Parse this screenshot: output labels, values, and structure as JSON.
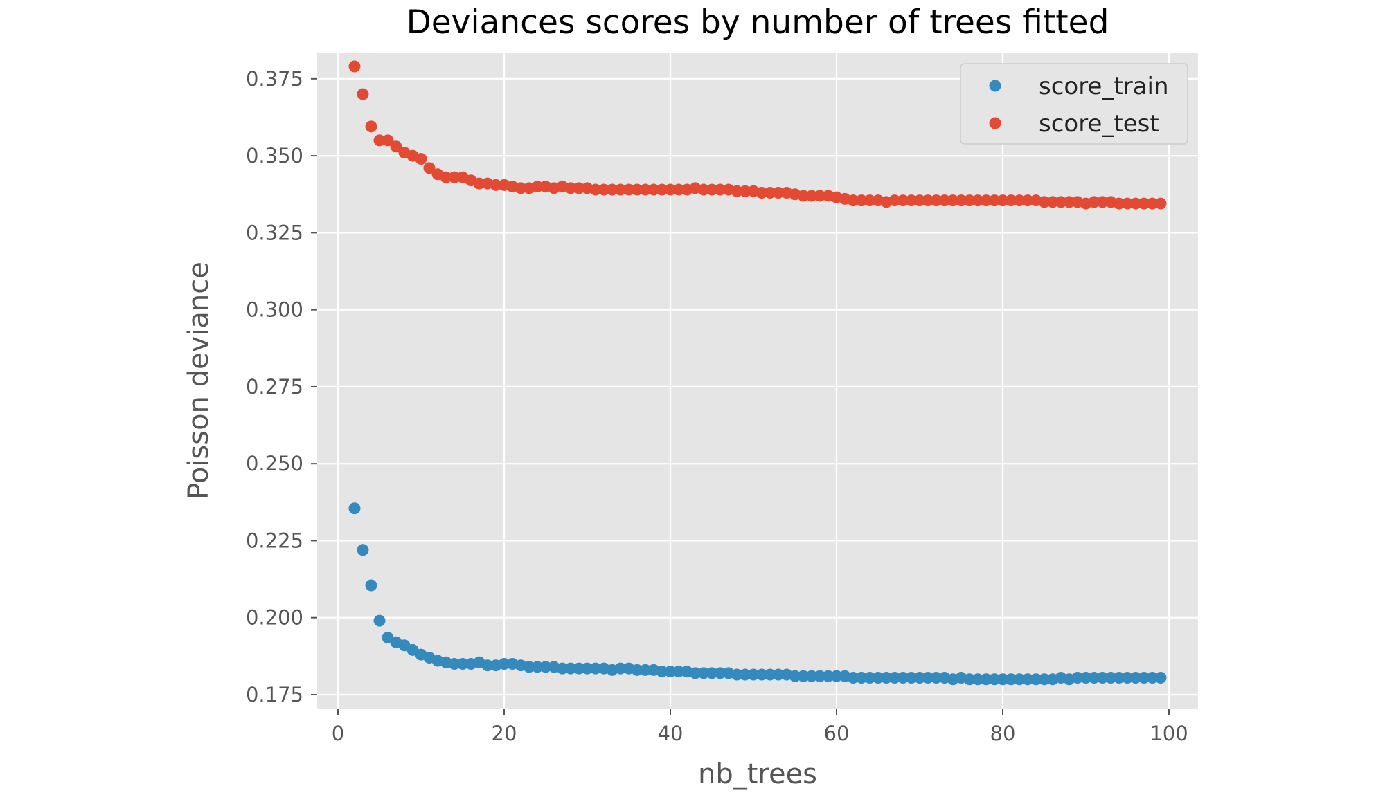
{
  "chart_data": {
    "type": "scatter",
    "title": "Deviances scores by number of trees fitted",
    "xlabel": "nb_trees",
    "ylabel": "Poisson deviance",
    "xlim": [
      -2.5,
      103.5
    ],
    "ylim": [
      0.1705,
      0.3835
    ],
    "xticks": [
      0,
      20,
      40,
      60,
      80,
      100
    ],
    "yticks": [
      0.175,
      0.2,
      0.225,
      0.25,
      0.275,
      0.3,
      0.325,
      0.35,
      0.375
    ],
    "xtick_labels": [
      "0",
      "20",
      "40",
      "60",
      "80",
      "100"
    ],
    "ytick_labels": [
      "0.175",
      "0.200",
      "0.225",
      "0.250",
      "0.275",
      "0.300",
      "0.325",
      "0.350",
      "0.375"
    ],
    "grid": true,
    "legend_position": "top-right",
    "background_color": "#e5e5e5",
    "series": [
      {
        "name": "score_train",
        "color": "#348abd",
        "x": [
          2,
          3,
          4,
          5,
          6,
          7,
          8,
          9,
          10,
          11,
          12,
          13,
          14,
          15,
          16,
          17,
          18,
          19,
          20,
          21,
          22,
          23,
          24,
          25,
          26,
          27,
          28,
          29,
          30,
          31,
          32,
          33,
          34,
          35,
          36,
          37,
          38,
          39,
          40,
          41,
          42,
          43,
          44,
          45,
          46,
          47,
          48,
          49,
          50,
          51,
          52,
          53,
          54,
          55,
          56,
          57,
          58,
          59,
          60,
          61,
          62,
          63,
          64,
          65,
          66,
          67,
          68,
          69,
          70,
          71,
          72,
          73,
          74,
          75,
          76,
          77,
          78,
          79,
          80,
          81,
          82,
          83,
          84,
          85,
          86,
          87,
          88,
          89,
          90,
          91,
          92,
          93,
          94,
          95,
          96,
          97,
          98,
          99
        ],
        "y": [
          0.2355,
          0.222,
          0.2105,
          0.199,
          0.1935,
          0.192,
          0.191,
          0.1895,
          0.188,
          0.187,
          0.186,
          0.1855,
          0.185,
          0.185,
          0.185,
          0.1855,
          0.1845,
          0.1845,
          0.185,
          0.185,
          0.1845,
          0.184,
          0.184,
          0.184,
          0.184,
          0.1835,
          0.1835,
          0.1835,
          0.1835,
          0.1835,
          0.1835,
          0.183,
          0.1835,
          0.1835,
          0.183,
          0.183,
          0.183,
          0.1825,
          0.1825,
          0.1825,
          0.1825,
          0.182,
          0.182,
          0.182,
          0.182,
          0.182,
          0.1815,
          0.1815,
          0.1815,
          0.1815,
          0.1815,
          0.1815,
          0.1815,
          0.181,
          0.181,
          0.181,
          0.181,
          0.181,
          0.181,
          0.181,
          0.1805,
          0.1805,
          0.1805,
          0.1805,
          0.1805,
          0.1805,
          0.1805,
          0.1805,
          0.1805,
          0.1805,
          0.1805,
          0.1805,
          0.18,
          0.1805,
          0.18,
          0.18,
          0.18,
          0.18,
          0.18,
          0.18,
          0.18,
          0.18,
          0.18,
          0.18,
          0.18,
          0.1805,
          0.18,
          0.1805,
          0.1805,
          0.1805,
          0.1805,
          0.1805,
          0.1805,
          0.1805,
          0.1805,
          0.1805,
          0.1805,
          0.1805
        ]
      },
      {
        "name": "score_test",
        "color": "#e24a33",
        "x": [
          2,
          3,
          4,
          5,
          6,
          7,
          8,
          9,
          10,
          11,
          12,
          13,
          14,
          15,
          16,
          17,
          18,
          19,
          20,
          21,
          22,
          23,
          24,
          25,
          26,
          27,
          28,
          29,
          30,
          31,
          32,
          33,
          34,
          35,
          36,
          37,
          38,
          39,
          40,
          41,
          42,
          43,
          44,
          45,
          46,
          47,
          48,
          49,
          50,
          51,
          52,
          53,
          54,
          55,
          56,
          57,
          58,
          59,
          60,
          61,
          62,
          63,
          64,
          65,
          66,
          67,
          68,
          69,
          70,
          71,
          72,
          73,
          74,
          75,
          76,
          77,
          78,
          79,
          80,
          81,
          82,
          83,
          84,
          85,
          86,
          87,
          88,
          89,
          90,
          91,
          92,
          93,
          94,
          95,
          96,
          97,
          98,
          99
        ],
        "y": [
          0.379,
          0.37,
          0.3595,
          0.355,
          0.355,
          0.353,
          0.351,
          0.35,
          0.349,
          0.346,
          0.344,
          0.343,
          0.343,
          0.343,
          0.342,
          0.341,
          0.341,
          0.3405,
          0.3405,
          0.34,
          0.3395,
          0.3395,
          0.34,
          0.34,
          0.3395,
          0.34,
          0.3395,
          0.3395,
          0.3395,
          0.339,
          0.339,
          0.339,
          0.339,
          0.339,
          0.339,
          0.339,
          0.339,
          0.339,
          0.339,
          0.339,
          0.339,
          0.3395,
          0.339,
          0.339,
          0.339,
          0.339,
          0.3385,
          0.3385,
          0.3385,
          0.338,
          0.338,
          0.338,
          0.338,
          0.3375,
          0.337,
          0.337,
          0.337,
          0.337,
          0.3365,
          0.336,
          0.3355,
          0.3355,
          0.3355,
          0.3355,
          0.335,
          0.3355,
          0.3355,
          0.3355,
          0.3355,
          0.3355,
          0.3355,
          0.3355,
          0.3355,
          0.3355,
          0.3355,
          0.3355,
          0.3355,
          0.3355,
          0.3355,
          0.3355,
          0.3355,
          0.3355,
          0.3355,
          0.335,
          0.335,
          0.335,
          0.335,
          0.335,
          0.3345,
          0.335,
          0.335,
          0.335,
          0.3345,
          0.3345,
          0.3345,
          0.3345,
          0.3345,
          0.3345
        ]
      }
    ]
  }
}
